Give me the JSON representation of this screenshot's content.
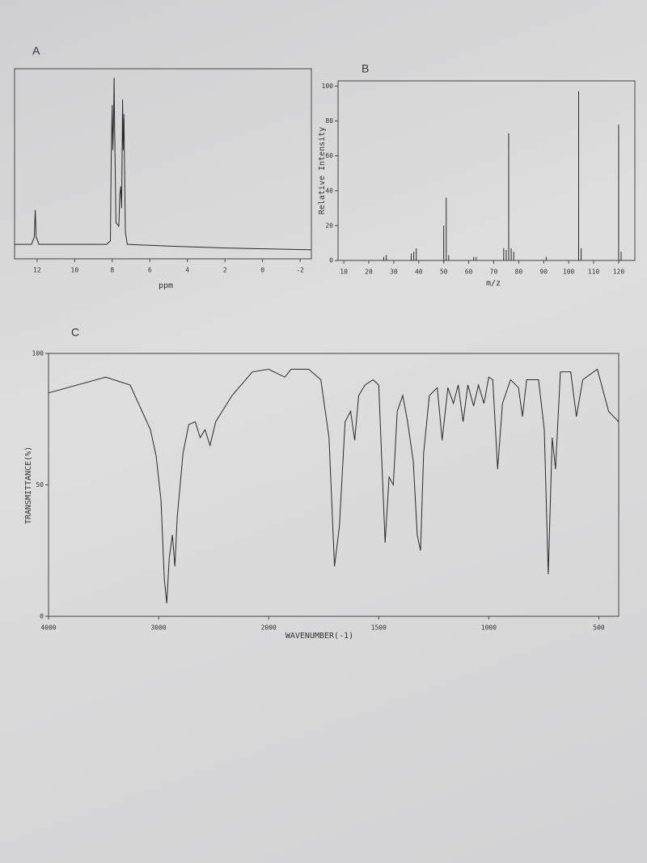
{
  "chart_data": [
    {
      "type": "line",
      "title": "A",
      "xlabel": "ppm",
      "x": [
        13.2,
        12.3,
        12.15,
        12.1,
        12.05,
        11.9,
        8.3,
        8.1,
        8.05,
        8.0,
        7.97,
        7.93,
        7.9,
        7.87,
        7.8,
        7.65,
        7.6,
        7.55,
        7.5,
        7.45,
        7.42,
        7.38,
        7.3,
        7.2,
        5,
        2,
        -2.6
      ],
      "values": [
        8,
        8,
        12,
        27,
        12,
        8,
        8,
        10,
        60,
        85,
        60,
        75,
        100,
        70,
        20,
        18,
        35,
        40,
        28,
        88,
        60,
        80,
        15,
        8,
        7,
        6,
        5
      ],
      "xlim": [
        13.2,
        -2.6
      ],
      "xticks": [
        12,
        10,
        8,
        6,
        4,
        2,
        0,
        -2
      ],
      "ylim": [
        0,
        105
      ],
      "color": "#2a2a2a"
    },
    {
      "type": "bar",
      "title": "B",
      "xlabel": "m/z",
      "ylabel": "Relative Intensity",
      "x": [
        26,
        27,
        37,
        38,
        39,
        50,
        51,
        52,
        62,
        63,
        74,
        75,
        76,
        77,
        78,
        91,
        104,
        105,
        120,
        121
      ],
      "values": [
        2,
        3,
        4,
        5,
        7,
        20,
        36,
        3,
        2,
        2,
        7,
        6,
        73,
        7,
        5,
        2,
        97,
        7,
        78,
        5
      ],
      "xlim": [
        7.7,
        126.5
      ],
      "xticks": [
        10,
        20,
        30,
        40,
        50,
        60,
        70,
        80,
        90,
        100,
        110,
        120
      ],
      "ylim": [
        0,
        103
      ],
      "yticks": [
        0,
        20,
        40,
        60,
        80,
        100
      ],
      "color": "#2a2a2a"
    },
    {
      "type": "line",
      "title": "C",
      "xlabel": "WAVENUMBER(-1)",
      "ylabel": "TRANSMITTANCE(%)",
      "xscale": "piecewise",
      "x": [
        4000,
        3481,
        3259,
        3074,
        3022,
        2978,
        2948,
        2926,
        2904,
        2874,
        2852,
        2830,
        2778,
        2726,
        2667,
        2622,
        2578,
        2533,
        2481,
        2333,
        2148,
        2000,
        1927,
        1898,
        1818,
        1763,
        1726,
        1701,
        1679,
        1653,
        1628,
        1609,
        1591,
        1562,
        1526,
        1500,
        1489,
        1471,
        1453,
        1434,
        1416,
        1391,
        1369,
        1343,
        1325,
        1310,
        1296,
        1270,
        1234,
        1212,
        1186,
        1161,
        1139,
        1117,
        1095,
        1069,
        1047,
        1022,
        1000,
        982,
        960,
        938,
        901,
        865,
        847,
        828,
        774,
        748,
        730,
        712,
        697,
        675,
        628,
        602,
        573,
        507,
        456,
        410
      ],
      "values": [
        85,
        91,
        88,
        71,
        61,
        44,
        14,
        5,
        22,
        31,
        19,
        38,
        62,
        73,
        74,
        68,
        71,
        65,
        74,
        84,
        93,
        94,
        91,
        94,
        94,
        90,
        68,
        19,
        34,
        74,
        78,
        67,
        84,
        88,
        90,
        88,
        65,
        28,
        53,
        50,
        78,
        84,
        74,
        59,
        31,
        25,
        62,
        84,
        87,
        67,
        87,
        81,
        88,
        74,
        88,
        80,
        88,
        81,
        91,
        90,
        56,
        81,
        90,
        87,
        76,
        90,
        90,
        71,
        16,
        68,
        56,
        93,
        93,
        76,
        90,
        94,
        78,
        74
      ],
      "xlim": [
        4000,
        410
      ],
      "xticks": [
        4000,
        3000,
        2000,
        1500,
        1000,
        500
      ],
      "ylim": [
        0,
        100
      ],
      "yticks": [
        0,
        50,
        100
      ],
      "color": "#2a2a2a"
    }
  ]
}
